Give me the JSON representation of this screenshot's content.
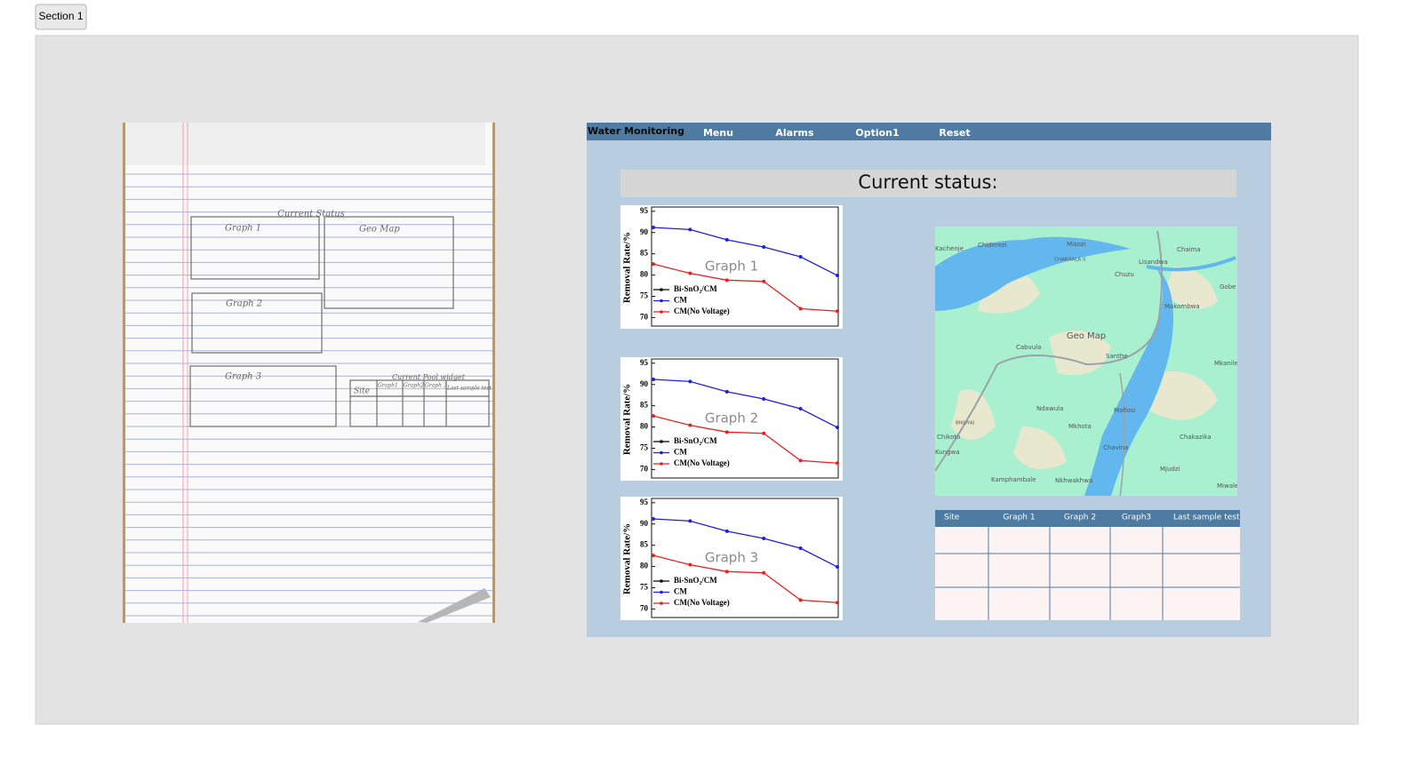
{
  "button": "Section 1",
  "sketch": {
    "title": "Current Status",
    "labels": [
      "Graph 1",
      "Geo Map",
      "Graph 2",
      "Graph 3",
      "Current Pool widget"
    ],
    "table_header": [
      "Site",
      "Graph1",
      "Graph2",
      "Graph 3",
      "Last sample test"
    ]
  },
  "nav": {
    "brand": "Water Monitoring",
    "items": [
      "Menu",
      "Alarms",
      "Option1",
      "Reset"
    ]
  },
  "status_title": "Current status:",
  "chart_data": [
    {
      "type": "line",
      "title": "Graph 1",
      "y_label": "Removal Rate/%",
      "x": [
        0.4,
        0.6,
        0.8,
        1.0,
        1.2,
        1.4
      ],
      "xlim": [
        0.4,
        1.4
      ],
      "ylim": [
        68,
        96
      ],
      "yticks": [
        70,
        75,
        80,
        85,
        90,
        95
      ],
      "series": [
        {
          "name": "Bi-SnO₂/CM",
          "color": "#000000",
          "values": [
            null,
            null,
            null,
            null,
            null,
            null
          ]
        },
        {
          "name": "CM",
          "color": "#1f1fe0",
          "values": [
            91.2,
            90.7,
            88.3,
            86.6,
            84.3,
            79.9
          ]
        },
        {
          "name": "CM(No Voltage)",
          "color": "#e81f1f",
          "values": [
            82.6,
            80.4,
            78.8,
            78.5,
            72.1,
            71.5
          ]
        }
      ]
    },
    {
      "type": "line",
      "title": "Graph 2",
      "y_label": "Removal Rate/%",
      "x": [
        0.4,
        0.6,
        0.8,
        1.0,
        1.2,
        1.4
      ],
      "xlim": [
        0.4,
        1.4
      ],
      "ylim": [
        68,
        96
      ],
      "yticks": [
        70,
        75,
        80,
        85,
        90,
        95
      ],
      "series": [
        {
          "name": "Bi-SnO₂/CM",
          "color": "#000000",
          "values": [
            null,
            null,
            null,
            null,
            null,
            null
          ]
        },
        {
          "name": "CM",
          "color": "#1f1fe0",
          "values": [
            91.2,
            90.7,
            88.3,
            86.6,
            84.3,
            79.9
          ]
        },
        {
          "name": "CM(No Voltage)",
          "color": "#e81f1f",
          "values": [
            82.6,
            80.4,
            78.8,
            78.5,
            72.1,
            71.5
          ]
        }
      ]
    },
    {
      "type": "line",
      "title": "Graph 3",
      "y_label": "Removal Rate/%",
      "x": [
        0.4,
        0.6,
        0.8,
        1.0,
        1.2,
        1.4
      ],
      "xlim": [
        0.4,
        1.4
      ],
      "ylim": [
        68,
        96
      ],
      "yticks": [
        70,
        75,
        80,
        85,
        90,
        95
      ],
      "series": [
        {
          "name": "Bi-SnO₂/CM",
          "color": "#000000",
          "values": [
            null,
            null,
            null,
            null,
            null,
            null
          ]
        },
        {
          "name": "CM",
          "color": "#1f1fe0",
          "values": [
            91.2,
            90.7,
            88.3,
            86.6,
            84.3,
            79.9
          ]
        },
        {
          "name": "CM(No Voltage)",
          "color": "#e81f1f",
          "values": [
            82.6,
            80.4,
            78.8,
            78.5,
            72.1,
            71.5
          ]
        }
      ]
    }
  ],
  "map": {
    "title": "Geo Map",
    "places": [
      "Kachenje",
      "Chiderezi",
      "Misozi",
      "Chaima",
      "CHAKHALA II",
      "Lisandwa",
      "Chuzu",
      "Gobe",
      "Makombwa",
      "Cabvula",
      "Santhe",
      "Mkanile",
      "Ndawula",
      "Mafiosi",
      "BIKUYAI",
      "Mkhota",
      "Chikoto",
      "Chakazika",
      "Kungwa",
      "Chavina",
      "Mjudzi",
      "Kamphambale",
      "Nkhwakhwa",
      "Miwale"
    ]
  },
  "table": {
    "header": [
      "Site",
      "Graph 1",
      "Graph 2",
      "Graph3",
      "Last sample test"
    ]
  }
}
